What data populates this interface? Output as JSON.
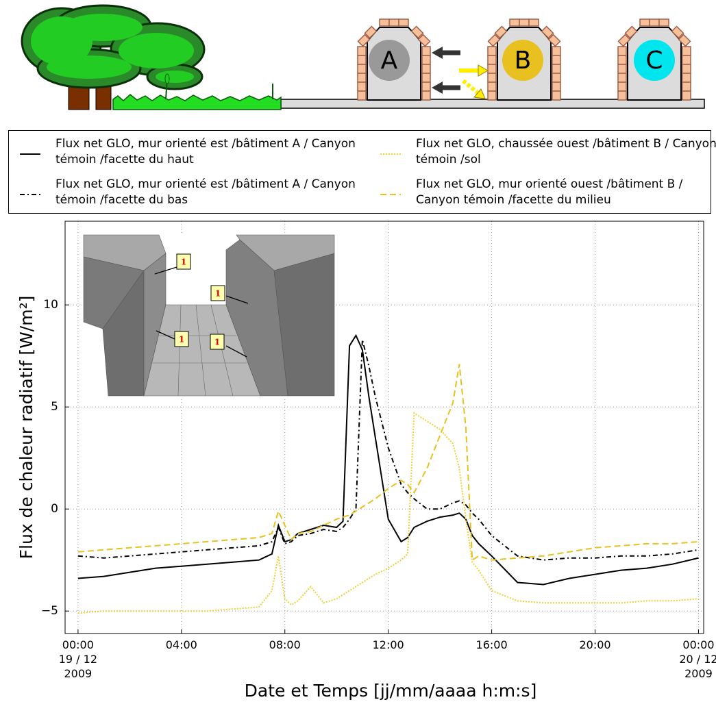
{
  "illustration": {
    "buildings": [
      "A",
      "B",
      "C"
    ]
  },
  "inset": {
    "labels": [
      "1",
      "1",
      "1",
      "1"
    ]
  },
  "chart_data": {
    "type": "line",
    "xlabel": "Date et Temps [jj/mm/aaaa h:m:s]",
    "ylabel": "Flux de chaleur radiatif [W/m²]",
    "x": [
      0,
      1,
      2,
      3,
      4,
      5,
      6,
      7,
      7.5,
      7.75,
      8,
      8.25,
      8.5,
      9,
      9.5,
      10,
      10.25,
      10.5,
      10.75,
      11,
      11.25,
      11.5,
      12,
      12.5,
      12.75,
      13,
      13.5,
      14,
      14.5,
      14.75,
      15,
      15.25,
      15.5,
      16,
      17,
      18,
      19,
      20,
      21,
      22,
      23,
      24
    ],
    "xlim": [
      -0.5,
      24.2
    ],
    "xticks": [
      {
        "value": 0,
        "label": "00:00\n19 / 12\n2009"
      },
      {
        "value": 4,
        "label": "04:00"
      },
      {
        "value": 8,
        "label": "08:00"
      },
      {
        "value": 12,
        "label": "12:00"
      },
      {
        "value": 16,
        "label": "16:00"
      },
      {
        "value": 20,
        "label": "20:00"
      },
      {
        "value": 24,
        "label": "00:00\n20 / 12\n2009"
      }
    ],
    "ylim": [
      -6.1,
      14.1
    ],
    "yticks": [
      {
        "value": -5,
        "label": "−5"
      },
      0,
      5,
      10
    ],
    "grid": true,
    "legend": "above",
    "series": [
      {
        "name": "Flux net GLO, mur orienté est /bâtiment A / Canyon témoin /facette du haut",
        "color": "#000000",
        "linestyle": "solid",
        "values": [
          -3.4,
          -3.3,
          -3.1,
          -2.9,
          -2.8,
          -2.7,
          -2.6,
          -2.5,
          -2.2,
          -0.8,
          -1.6,
          -1.5,
          -1.2,
          -1.0,
          -0.8,
          -0.9,
          -0.6,
          8.0,
          8.5,
          7.8,
          5.5,
          3.5,
          -0.5,
          -1.6,
          -1.4,
          -0.9,
          -0.6,
          -0.4,
          -0.3,
          -0.2,
          -0.5,
          -1.3,
          -1.7,
          -2.3,
          -3.6,
          -3.7,
          -3.4,
          -3.2,
          -3.0,
          -2.9,
          -2.7,
          -2.4
        ]
      },
      {
        "name": "Flux net GLO, mur orienté est /bâtiment A / Canyon témoin /facette du bas",
        "color": "#000000",
        "linestyle": "dashdot",
        "values": [
          -2.3,
          -2.4,
          -2.3,
          -2.2,
          -2.1,
          -2.0,
          -1.9,
          -1.8,
          -1.6,
          -0.9,
          -1.7,
          -1.6,
          -1.3,
          -1.2,
          -1.0,
          -1.1,
          -0.9,
          -0.5,
          0.0,
          8.3,
          7.0,
          5.5,
          3.0,
          1.2,
          0.8,
          0.5,
          0.0,
          0.0,
          0.3,
          0.4,
          0.2,
          -0.2,
          -0.5,
          -1.3,
          -2.3,
          -2.5,
          -2.4,
          -2.4,
          -2.3,
          -2.3,
          -2.2,
          -2.0
        ]
      },
      {
        "name": "Flux net GLO, chaussée ouest /bâtiment B / Canyon témoin /sol",
        "color": "#efd030",
        "linestyle": "dotted",
        "values": [
          -5.1,
          -5.0,
          -5.0,
          -5.0,
          -5.0,
          -5.0,
          -4.9,
          -4.8,
          -4.0,
          -2.3,
          -4.4,
          -4.7,
          -4.5,
          -3.8,
          -4.6,
          -4.4,
          -4.2,
          -4.0,
          -3.8,
          -3.6,
          -3.4,
          -3.2,
          -2.9,
          -2.5,
          -2.2,
          4.7,
          4.3,
          3.9,
          3.2,
          2.0,
          -0.5,
          -2.6,
          -3.0,
          -4.0,
          -4.5,
          -4.6,
          -4.6,
          -4.6,
          -4.6,
          -4.5,
          -4.5,
          -4.4
        ]
      },
      {
        "name": "Flux net GLO, mur orienté ouest /bâtiment B / Canyon témoin /facette du milieu",
        "color": "#e8c020",
        "linestyle": "dashed",
        "values": [
          -2.1,
          -2.0,
          -1.9,
          -1.8,
          -1.7,
          -1.6,
          -1.5,
          -1.4,
          -1.2,
          -0.1,
          -0.8,
          -1.5,
          -1.2,
          -1.1,
          -0.8,
          -0.5,
          -0.4,
          -0.3,
          -0.1,
          0.1,
          0.3,
          0.5,
          1.0,
          1.4,
          1.2,
          0.8,
          2.0,
          3.6,
          5.2,
          7.1,
          4.0,
          -2.5,
          -2.3,
          -2.5,
          -2.4,
          -2.3,
          -2.1,
          -1.9,
          -1.8,
          -1.7,
          -1.7,
          -1.6
        ]
      }
    ]
  }
}
